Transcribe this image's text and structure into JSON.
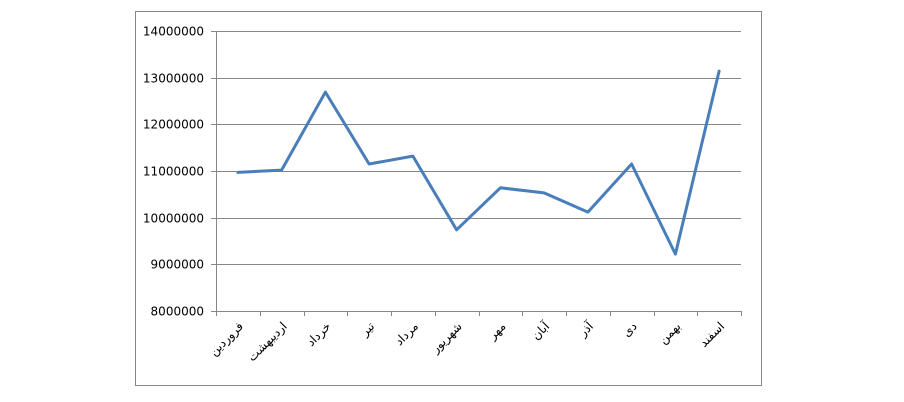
{
  "chart_data": {
    "type": "line",
    "categories": [
      "فروردین",
      "اردیبهشت",
      "خرداد",
      "تیر",
      "مرداد",
      "شهریور",
      "مهر",
      "آبان",
      "آذر",
      "دی",
      "بهمن",
      "اسفند"
    ],
    "values": [
      10970000,
      11020000,
      12690000,
      11150000,
      11320000,
      9740000,
      10640000,
      10530000,
      10120000,
      11150000,
      9220000,
      13140000
    ],
    "color": "#4a7ebb",
    "ylim": [
      8000000,
      14000000
    ],
    "yticks": [
      8000000,
      9000000,
      10000000,
      11000000,
      12000000,
      13000000,
      14000000
    ],
    "grid": true
  }
}
